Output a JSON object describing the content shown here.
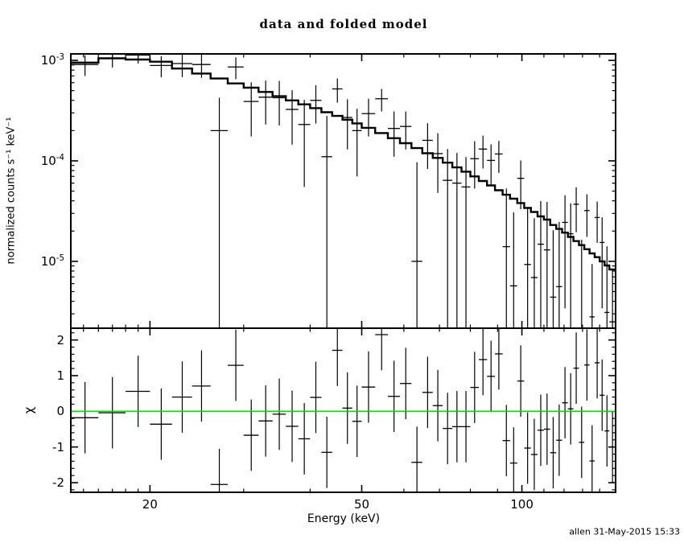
{
  "chart_data": {
    "type": "line",
    "title": "data and folded model",
    "xlabel": "Energy (keV)",
    "xscale": "log",
    "xlim": [
      14.2,
      150
    ],
    "x_major_ticks": [
      20,
      50,
      100
    ],
    "x_major_labels": [
      "20",
      "50",
      "100"
    ],
    "x_minor_ticks": [
      15,
      16,
      17,
      18,
      19,
      30,
      40,
      60,
      70,
      80,
      90,
      110,
      120,
      130,
      140,
      150
    ],
    "top_panel": {
      "ylabel": "normalized counts s⁻¹ keV⁻¹",
      "yscale": "log",
      "ylim": [
        2.16e-06,
        0.00116
      ],
      "y_major_ticks": [
        {
          "value": 0.001,
          "mantissa": "10",
          "exponent": "-3"
        },
        {
          "value": 0.0001,
          "mantissa": "10",
          "exponent": "-4"
        },
        {
          "value": 1e-05,
          "mantissa": "10",
          "exponent": "-5"
        }
      ],
      "model_color": "#000000",
      "data_color": "#000000",
      "bins": [
        [
          14.2,
          16,
          0.00095,
          0.00091,
          0.00021
        ],
        [
          16,
          18,
          0.00105,
          0.00104,
          0.00019
        ],
        [
          18,
          20,
          0.00102,
          0.00113,
          0.0002
        ],
        [
          20,
          22,
          0.00097,
          0.00089,
          0.00021
        ],
        [
          22,
          24,
          0.00083,
          0.00093,
          0.00025
        ],
        [
          24,
          26,
          0.00074,
          0.00091,
          0.00024
        ],
        [
          26,
          28,
          0.00066,
          0.0002,
          0.000225
        ],
        [
          28,
          30,
          0.00059,
          0.00086,
          0.00021
        ],
        [
          30,
          32,
          0.000535,
          0.00039,
          0.000215
        ],
        [
          32,
          34,
          0.000485,
          0.00043,
          0.0002
        ],
        [
          34,
          36,
          0.00044,
          0.000425,
          0.0002
        ],
        [
          36,
          38,
          0.0004,
          0.000325,
          0.00018
        ],
        [
          38,
          40,
          0.000365,
          0.00023,
          0.000175
        ],
        [
          40,
          42,
          0.000335,
          0.0004,
          0.000165
        ],
        [
          42,
          44,
          0.000305,
          0.00011,
          0.00017
        ],
        [
          44,
          46,
          0.00028,
          0.00052,
          0.00014
        ],
        [
          46,
          48,
          0.000257,
          0.00027,
          0.00014
        ],
        [
          48,
          50,
          0.000236,
          0.0002,
          0.00013
        ],
        [
          50,
          53,
          0.000213,
          0.000295,
          0.00012
        ],
        [
          53,
          56,
          0.000189,
          0.000415,
          0.000105
        ],
        [
          56,
          59,
          0.000168,
          0.00021,
          0.0001
        ],
        [
          59,
          62,
          0.00015,
          0.00022,
          9e-05
        ],
        [
          62,
          65,
          0.000134,
          1e-05,
          8.7e-05
        ],
        [
          65,
          68,
          0.000119,
          0.00016,
          7.7e-05
        ],
        [
          68,
          71,
          0.000107,
          0.000118,
          7e-05
        ],
        [
          71,
          74,
          9.6e-05,
          6.4e-05,
          6.7e-05
        ],
        [
          74,
          77,
          8.6e-05,
          6e-05,
          6e-05
        ],
        [
          77,
          80,
          7.8e-05,
          5.5e-05,
          5.4e-05
        ],
        [
          80,
          83,
          7e-05,
          0.000105,
          5.2e-05
        ],
        [
          83,
          86,
          6.3e-05,
          0.000131,
          4.7e-05
        ],
        [
          86,
          89,
          5.7e-05,
          0.000101,
          4.5e-05
        ],
        [
          89,
          92,
          5.1e-05,
          0.000117,
          4.1e-05
        ],
        [
          92,
          95,
          4.6e-05,
          1.4e-05,
          3.9e-05
        ],
        [
          95,
          98,
          4.2e-05,
          5.7e-06,
          2.5e-05
        ],
        [
          98,
          101,
          3.8e-05,
          6.7e-05,
          3.4e-05
        ],
        [
          101,
          104,
          3.4e-05,
          9.3e-06,
          2.4e-05
        ],
        [
          104,
          107,
          3.1e-05,
          6.9e-06,
          2e-05
        ],
        [
          107,
          110,
          2.8e-05,
          1.48e-05,
          2.5e-05
        ],
        [
          110,
          113,
          2.6e-05,
          1.3e-05,
          2.6e-05
        ],
        [
          113,
          116,
          2.3e-05,
          4.4e-06,
          1.6e-05
        ],
        [
          116,
          119,
          2.1e-05,
          5.6e-06,
          1.9e-05
        ],
        [
          119,
          122,
          1.93e-05,
          2.44e-05,
          2.1e-05
        ],
        [
          122,
          125,
          1.75e-05,
          1.88e-05,
          1.9e-05
        ],
        [
          125,
          128,
          1.59e-05,
          3.7e-05,
          1.75e-05
        ],
        [
          128,
          131,
          1.45e-05,
          1.9e-06,
          1.45e-05
        ],
        [
          131,
          134,
          1.32e-05,
          3.2e-05,
          1.45e-05
        ],
        [
          134,
          137,
          1.2e-05,
          2.8e-06,
          6.6e-06
        ],
        [
          137,
          140,
          1.1e-05,
          2.73e-05,
          1.2e-05
        ],
        [
          140,
          143,
          1e-05,
          1.54e-05,
          1.2e-05
        ],
        [
          143,
          146,
          9.1e-06,
          3.1e-06,
          1.1e-05
        ],
        [
          146,
          150,
          8.3e-06,
          2.5e-06,
          5.8e-06
        ]
      ]
    },
    "bottom_panel": {
      "ylabel": "χ",
      "yscale": "linear",
      "ylim": [
        -2.27,
        2.33
      ],
      "y_major_ticks": [
        -2,
        -1,
        0,
        1,
        2
      ],
      "y_major_labels": [
        "-2",
        "-1",
        "0",
        "1",
        "2"
      ],
      "y_minor_step": 0.2,
      "zero_line_color": "#00DD00",
      "chi_error": 1,
      "chi": [
        -0.18,
        -0.04,
        0.56,
        -0.36,
        0.4,
        0.71,
        -2.05,
        1.29,
        -0.67,
        -0.27,
        -0.08,
        -0.42,
        -0.77,
        0.39,
        -1.15,
        1.71,
        0.09,
        -0.28,
        0.68,
        2.15,
        0.42,
        0.78,
        -1.43,
        0.53,
        0.16,
        -0.48,
        -0.43,
        -0.43,
        0.67,
        1.45,
        0.98,
        1.61,
        -0.82,
        -1.45,
        0.85,
        -1.03,
        -1.21,
        -0.53,
        -0.5,
        -1.16,
        -0.81,
        0.24,
        0.07,
        1.21,
        -0.87,
        1.3,
        -1.39,
        1.36,
        0.45,
        -0.55,
        -1.0
      ]
    },
    "footer": "allen 31-May-2015 15:33"
  }
}
